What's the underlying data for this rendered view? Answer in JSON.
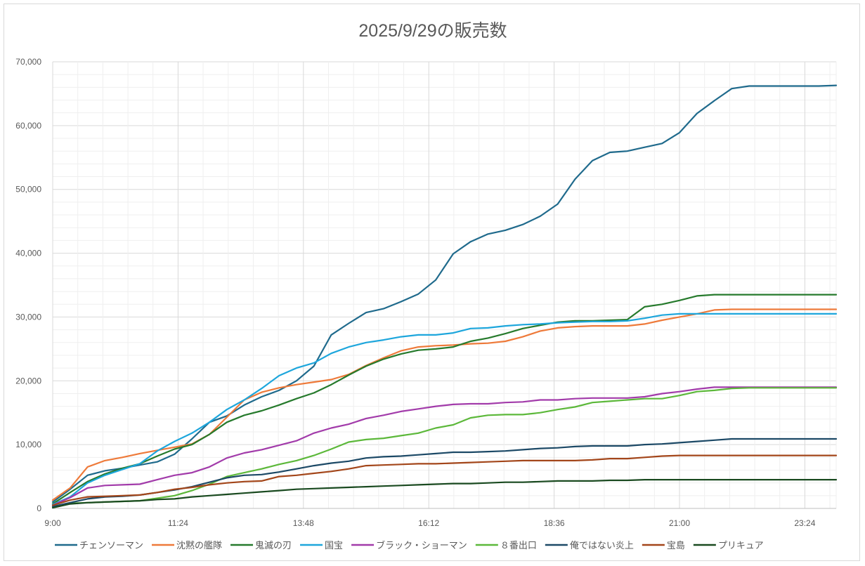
{
  "chart_data": {
    "type": "line",
    "title": "2025/9/29の販売数",
    "xlabel": "",
    "ylabel": "",
    "ylim": [
      0,
      70000
    ],
    "y_major_step": 10000,
    "y_minor_step": 2000,
    "grid": true,
    "legend_position": "bottom",
    "x_start": "9:00",
    "x_step_minutes": 20,
    "x_tick_labels": [
      "9:00",
      "11:24",
      "13:48",
      "16:12",
      "18:36",
      "21:00",
      "23:24"
    ],
    "y_tick_labels": [
      "0",
      "10,000",
      "20,000",
      "30,000",
      "40,000",
      "50,000",
      "60,000",
      "70,000"
    ],
    "series": [
      {
        "name": "チェンソーマン",
        "color": "#1f6a8c",
        "values": [
          1000,
          3000,
          5200,
          5900,
          6300,
          6800,
          7300,
          8500,
          10900,
          13500,
          14500,
          16200,
          17500,
          18500,
          20000,
          22300,
          27200,
          29000,
          30700,
          31300,
          32400,
          33600,
          35800,
          39900,
          41800,
          43000,
          43600,
          44500,
          45800,
          47700,
          51600,
          54500,
          55800,
          56000,
          56600,
          57200,
          58900,
          61900,
          63900,
          65800,
          66200,
          66200,
          66200,
          66200,
          66200,
          66300
        ]
      },
      {
        "name": "沈黙の艦隊",
        "color": "#ee7a3a",
        "values": [
          1300,
          3200,
          6500,
          7500,
          8000,
          8600,
          9100,
          9600,
          10100,
          11600,
          14300,
          17000,
          18200,
          18900,
          19400,
          19800,
          20200,
          21000,
          22400,
          23600,
          24700,
          25300,
          25500,
          25600,
          25800,
          25900,
          26200,
          26900,
          27800,
          28300,
          28500,
          28600,
          28600,
          28600,
          28900,
          29500,
          30000,
          30500,
          31100,
          31200,
          31200,
          31200,
          31200,
          31200,
          31200,
          31200
        ]
      },
      {
        "name": "鬼滅の刃",
        "color": "#267a2c",
        "values": [
          700,
          2500,
          4200,
          5400,
          6300,
          7000,
          8200,
          9300,
          10000,
          11600,
          13500,
          14600,
          15300,
          16200,
          17200,
          18100,
          19400,
          20900,
          22300,
          23400,
          24200,
          24800,
          25000,
          25300,
          26200,
          26700,
          27400,
          28200,
          28700,
          29200,
          29400,
          29400,
          29500,
          29600,
          31600,
          32000,
          32600,
          33300,
          33500,
          33500,
          33500,
          33500,
          33500,
          33500,
          33500,
          33500
        ]
      },
      {
        "name": "国宝",
        "color": "#1da6dc",
        "values": [
          600,
          1800,
          4000,
          5200,
          6100,
          7000,
          9000,
          10500,
          11800,
          13500,
          15500,
          17000,
          18800,
          20800,
          22000,
          22800,
          24300,
          25300,
          26000,
          26400,
          26900,
          27200,
          27200,
          27500,
          28200,
          28300,
          28600,
          28800,
          28900,
          29100,
          29200,
          29300,
          29300,
          29400,
          29800,
          30300,
          30500,
          30500,
          30500,
          30500,
          30500,
          30500,
          30500,
          30500,
          30500,
          30500
        ]
      },
      {
        "name": "ブラック・ショーマン",
        "color": "#a23baa",
        "values": [
          500,
          1700,
          3200,
          3600,
          3700,
          3800,
          4500,
          5200,
          5600,
          6500,
          7900,
          8700,
          9200,
          9900,
          10600,
          11800,
          12600,
          13200,
          14100,
          14600,
          15200,
          15600,
          16000,
          16300,
          16400,
          16400,
          16600,
          16700,
          17000,
          17000,
          17200,
          17300,
          17300,
          17300,
          17500,
          18000,
          18300,
          18700,
          19000,
          19000,
          19000,
          19000,
          19000,
          19000,
          19000,
          19000
        ]
      },
      {
        "name": "８番出口",
        "color": "#5cb83a",
        "values": [
          300,
          800,
          900,
          1000,
          1100,
          1200,
          1600,
          2000,
          2800,
          3800,
          5000,
          5600,
          6200,
          6900,
          7500,
          8300,
          9300,
          10400,
          10800,
          11000,
          11400,
          11800,
          12600,
          13100,
          14200,
          14600,
          14700,
          14700,
          15000,
          15500,
          15900,
          16600,
          16800,
          17000,
          17200,
          17200,
          17700,
          18300,
          18500,
          18800,
          18900,
          18900,
          18900,
          18900,
          18900,
          18900
        ]
      },
      {
        "name": "俺ではない炎上",
        "color": "#1c4966",
        "values": [
          300,
          900,
          1500,
          1800,
          1900,
          2100,
          2500,
          2900,
          3400,
          4100,
          4800,
          5200,
          5300,
          5700,
          6200,
          6700,
          7100,
          7400,
          7900,
          8100,
          8200,
          8400,
          8600,
          8800,
          8800,
          8900,
          9000,
          9200,
          9400,
          9500,
          9700,
          9800,
          9800,
          9800,
          10000,
          10100,
          10300,
          10500,
          10700,
          10900,
          10900,
          10900,
          10900,
          10900,
          10900,
          10900
        ]
      },
      {
        "name": "宝島",
        "color": "#a3461a",
        "values": [
          500,
          1300,
          1800,
          1900,
          2000,
          2100,
          2500,
          3000,
          3300,
          3700,
          4000,
          4200,
          4300,
          5000,
          5200,
          5500,
          5800,
          6200,
          6700,
          6800,
          6900,
          7000,
          7000,
          7100,
          7200,
          7300,
          7400,
          7500,
          7500,
          7500,
          7500,
          7600,
          7800,
          7800,
          8000,
          8200,
          8300,
          8300,
          8300,
          8300,
          8300,
          8300,
          8300,
          8300,
          8300,
          8300
        ]
      },
      {
        "name": "プリキュア",
        "color": "#1a4a20",
        "values": [
          100,
          700,
          900,
          1000,
          1100,
          1200,
          1400,
          1500,
          1800,
          2000,
          2200,
          2400,
          2600,
          2800,
          3000,
          3100,
          3200,
          3300,
          3400,
          3500,
          3600,
          3700,
          3800,
          3900,
          3900,
          4000,
          4100,
          4100,
          4200,
          4300,
          4300,
          4300,
          4400,
          4400,
          4500,
          4500,
          4500,
          4500,
          4500,
          4500,
          4500,
          4500,
          4500,
          4500,
          4500,
          4500
        ]
      }
    ]
  }
}
